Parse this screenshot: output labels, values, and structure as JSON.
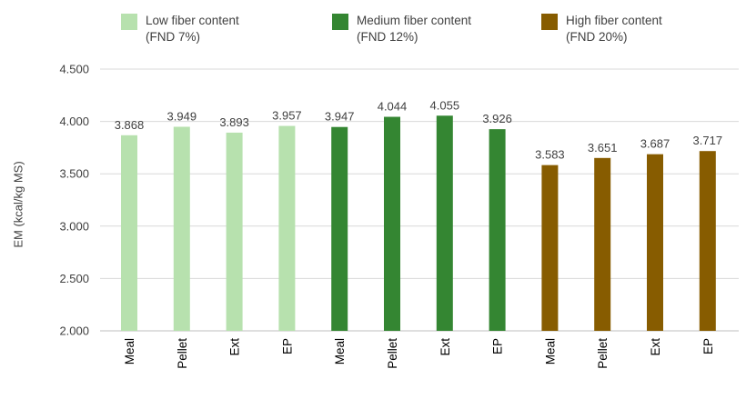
{
  "chart_data": {
    "type": "bar",
    "categories": [
      "Meal",
      "Pellet",
      "Ext",
      "EP",
      "Meal",
      "Pellet",
      "Ext",
      "EP",
      "Meal",
      "Pellet",
      "Ext",
      "EP"
    ],
    "values": [
      3868,
      3949,
      3893,
      3957,
      3947,
      4044,
      4055,
      3926,
      3583,
      3651,
      3687,
      3717
    ],
    "value_labels": [
      "3.868",
      "3.949",
      "3.893",
      "3.957",
      "3.947",
      "4.044",
      "4.055",
      "3.926",
      "3.583",
      "3.651",
      "3.687",
      "3.717"
    ],
    "groups": [
      {
        "line1": "Low fiber content",
        "line2": "(FND 7%)",
        "color": "#b7e1ae",
        "start": 0,
        "count": 4
      },
      {
        "line1": "Medium fiber content",
        "line2": "(FND 12%)",
        "color": "#348632",
        "start": 4,
        "count": 4
      },
      {
        "line1": "High fiber content",
        "line2": "(FND 20%)",
        "color": "#875c00",
        "start": 8,
        "count": 4
      }
    ],
    "ylabel": "EM (kcal/kg MS)",
    "ylim": [
      2000,
      4500
    ],
    "yticks": [
      2000,
      2500,
      3000,
      3500,
      4000,
      4500
    ],
    "ytick_labels": [
      "2.000",
      "2.500",
      "3.000",
      "3.500",
      "4.000",
      "4.500"
    ],
    "grid": true,
    "legend_position": "top"
  }
}
